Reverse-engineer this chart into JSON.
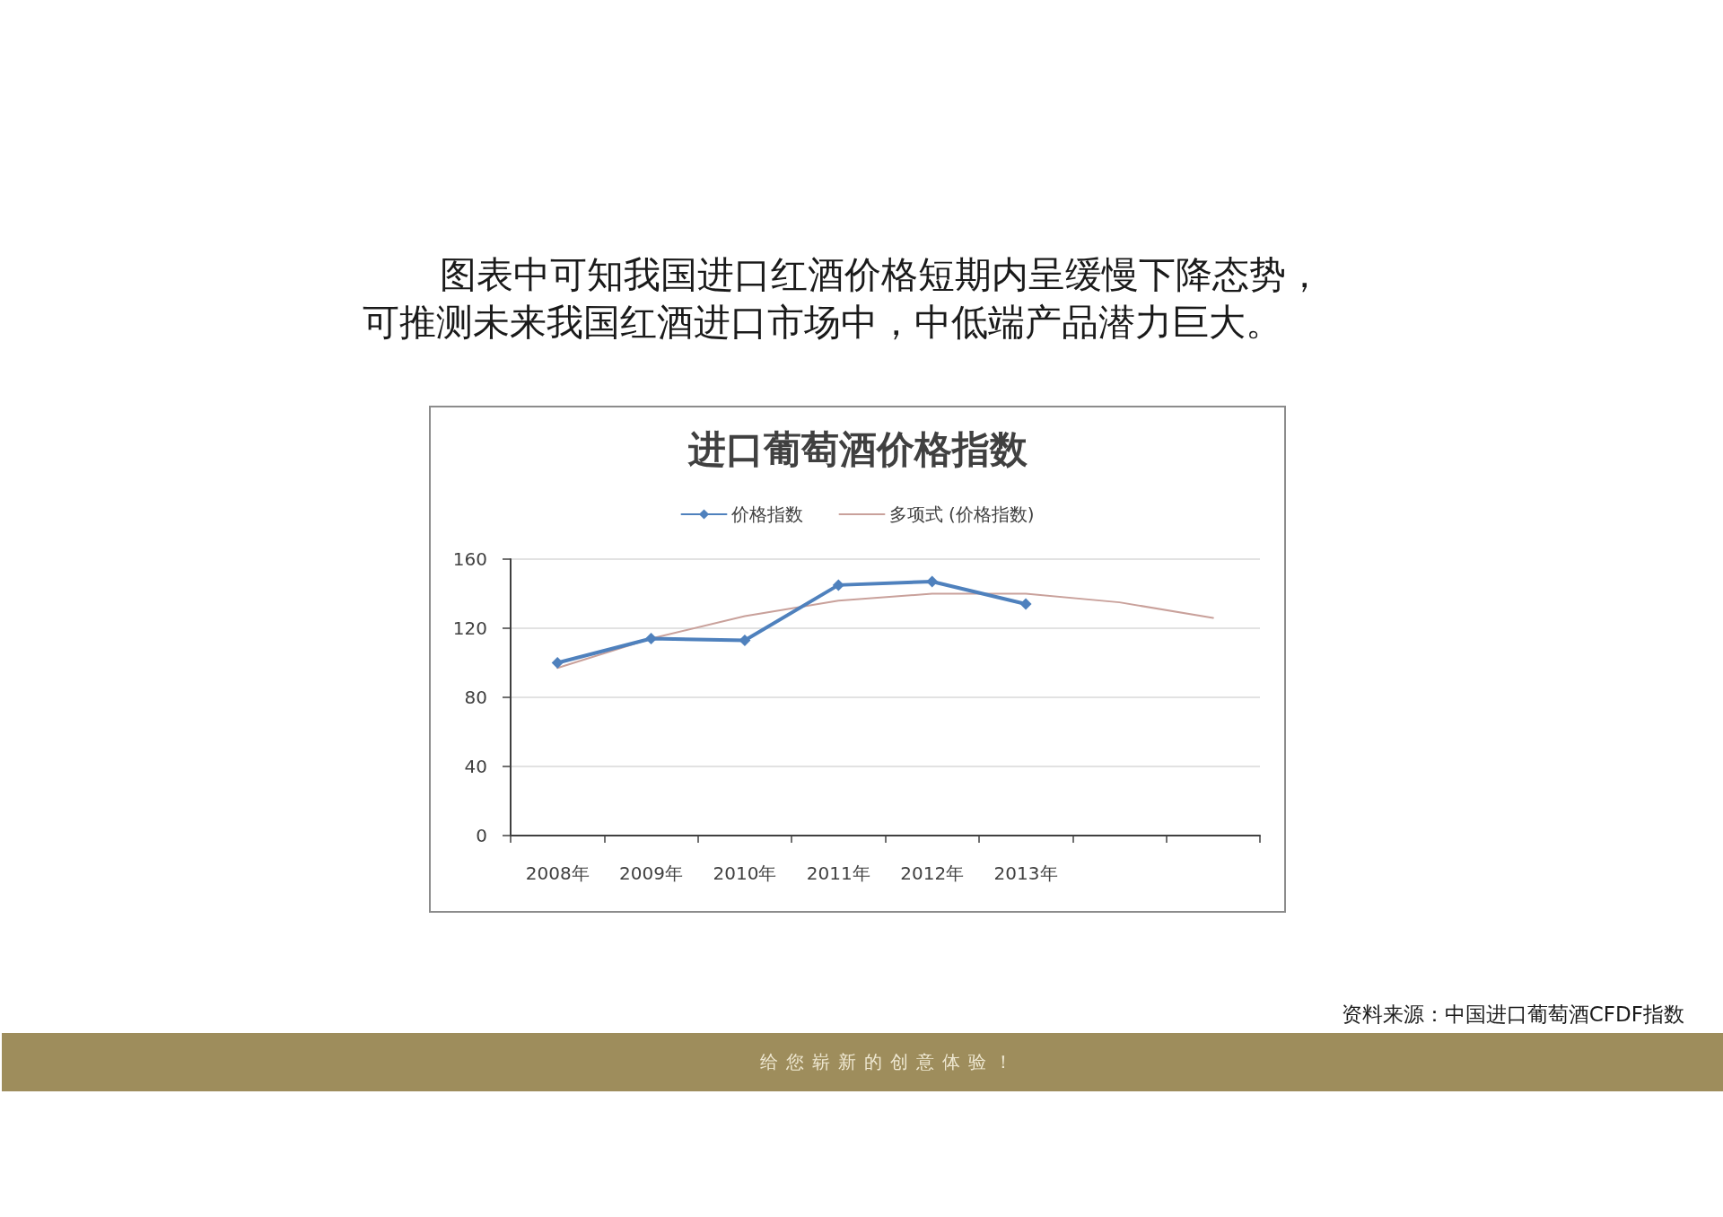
{
  "chart_data": {
    "type": "line",
    "title": "进口葡萄酒价格指数",
    "categories": [
      "2008年",
      "2009年",
      "2010年",
      "2011年",
      "2012年",
      "2013年",
      null,
      null
    ],
    "series": [
      {
        "name": "价格指数",
        "color": "#4f81bd",
        "values": [
          100,
          114,
          113,
          145,
          147,
          134,
          null,
          null
        ],
        "marker": "diamond"
      },
      {
        "name": "多项式 (价格指数)",
        "color": "#c9a19b",
        "values": [
          97,
          114,
          127,
          136,
          140,
          140,
          135,
          126
        ],
        "marker": "none"
      }
    ],
    "ylim": [
      0,
      160
    ],
    "yticks": [
      0,
      40,
      80,
      120,
      160
    ],
    "grid": "y",
    "legend": "top",
    "annotations": [
      "图表中可知我国进口红酒价格短期内呈缓慢下降态势，可推测未来我国红酒进口市场中，中低端产品潜力巨大。",
      "资料来源：中国进口葡萄酒CFDF指数",
      "给您崭新的创意体验！"
    ]
  }
}
